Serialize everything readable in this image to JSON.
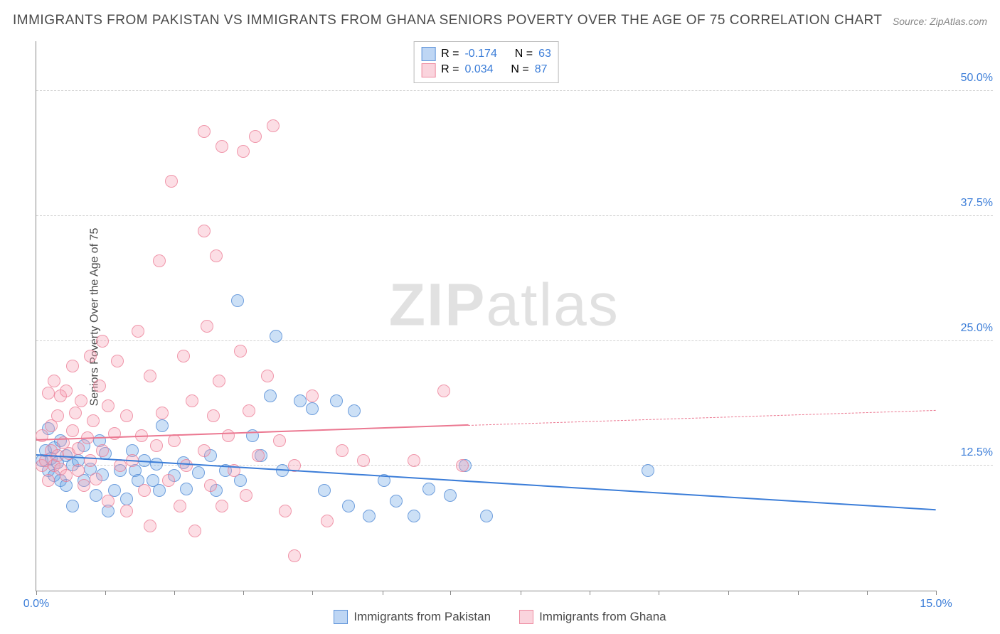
{
  "title": "IMMIGRANTS FROM PAKISTAN VS IMMIGRANTS FROM GHANA SENIORS POVERTY OVER THE AGE OF 75 CORRELATION CHART",
  "source": "Source: ZipAtlas.com",
  "y_axis_label": "Seniors Poverty Over the Age of 75",
  "watermark_bold": "ZIP",
  "watermark_light": "atlas",
  "chart": {
    "type": "scatter",
    "xlim": [
      0,
      15
    ],
    "ylim": [
      0,
      55
    ],
    "y_ticks": [
      12.5,
      25.0,
      37.5,
      50.0
    ],
    "y_tick_labels": [
      "12.5%",
      "25.0%",
      "37.5%",
      "50.0%"
    ],
    "x_ticks": [
      0,
      1.15,
      2.3,
      3.45,
      4.6,
      5.77,
      6.9,
      8.08,
      9.23,
      10.38,
      11.54,
      12.7,
      13.85,
      15
    ],
    "x_left_label": "0.0%",
    "x_right_label": "15.0%",
    "background_color": "#ffffff",
    "grid_color": "#d0d0d0",
    "axis_color": "#888888",
    "marker_radius": 9,
    "series": [
      {
        "name": "Immigrants from Pakistan",
        "color_fill": "rgba(110,165,230,0.35)",
        "color_stroke": "rgba(70,130,210,0.7)",
        "trend_color": "#3b7dd8",
        "R_label": "R = ",
        "R": "-0.174",
        "N_label": "N = ",
        "N": "63",
        "trend": {
          "x1": 0,
          "y1": 13.5,
          "x2": 15,
          "y2": 8.0,
          "dash_from": 15
        },
        "points": [
          [
            0.1,
            13.0
          ],
          [
            0.15,
            14.0
          ],
          [
            0.2,
            12.0
          ],
          [
            0.2,
            16.2
          ],
          [
            0.25,
            13.2
          ],
          [
            0.3,
            11.5
          ],
          [
            0.3,
            14.3
          ],
          [
            0.35,
            12.8
          ],
          [
            0.4,
            11.0
          ],
          [
            0.4,
            15.0
          ],
          [
            0.5,
            10.5
          ],
          [
            0.5,
            13.5
          ],
          [
            0.6,
            12.6
          ],
          [
            0.6,
            8.5
          ],
          [
            0.7,
            13.0
          ],
          [
            0.8,
            11.0
          ],
          [
            0.8,
            14.5
          ],
          [
            0.9,
            12.2
          ],
          [
            1.0,
            9.5
          ],
          [
            1.05,
            15.0
          ],
          [
            1.1,
            11.6
          ],
          [
            1.15,
            13.7
          ],
          [
            1.2,
            8.0
          ],
          [
            1.3,
            10.0
          ],
          [
            1.4,
            12.0
          ],
          [
            1.5,
            9.2
          ],
          [
            1.6,
            14.0
          ],
          [
            1.65,
            12.0
          ],
          [
            1.7,
            11.0
          ],
          [
            1.8,
            13.0
          ],
          [
            1.95,
            11.0
          ],
          [
            2.0,
            12.7
          ],
          [
            2.05,
            10.0
          ],
          [
            2.1,
            16.5
          ],
          [
            2.3,
            11.5
          ],
          [
            2.45,
            12.8
          ],
          [
            2.5,
            10.2
          ],
          [
            2.7,
            11.8
          ],
          [
            2.9,
            13.5
          ],
          [
            3.0,
            10.0
          ],
          [
            3.15,
            12.0
          ],
          [
            3.35,
            29.0
          ],
          [
            3.4,
            11.0
          ],
          [
            3.6,
            15.5
          ],
          [
            3.75,
            13.5
          ],
          [
            3.9,
            19.5
          ],
          [
            4.0,
            25.5
          ],
          [
            4.1,
            12.0
          ],
          [
            4.4,
            19.0
          ],
          [
            4.6,
            18.2
          ],
          [
            4.8,
            10.0
          ],
          [
            5.0,
            19.0
          ],
          [
            5.2,
            8.5
          ],
          [
            5.3,
            18.0
          ],
          [
            5.55,
            7.5
          ],
          [
            5.8,
            11.0
          ],
          [
            6.0,
            9.0
          ],
          [
            6.3,
            7.5
          ],
          [
            6.55,
            10.2
          ],
          [
            6.9,
            9.5
          ],
          [
            7.15,
            12.5
          ],
          [
            7.5,
            7.5
          ],
          [
            10.2,
            12.0
          ]
        ]
      },
      {
        "name": "Immigrants from Ghana",
        "color_fill": "rgba(245,160,180,0.35)",
        "color_stroke": "rgba(235,120,145,0.7)",
        "trend_color": "#eb7891",
        "R_label": "R = ",
        "R": "0.034",
        "N_label": "N = ",
        "N": "87",
        "trend": {
          "x1": 0,
          "y1": 15.0,
          "x2": 7.2,
          "y2": 16.5,
          "dash_from": 7.2,
          "x3": 15,
          "y3": 18.0
        },
        "points": [
          [
            0.1,
            12.5
          ],
          [
            0.1,
            15.5
          ],
          [
            0.15,
            13.0
          ],
          [
            0.2,
            19.8
          ],
          [
            0.2,
            11.0
          ],
          [
            0.25,
            16.5
          ],
          [
            0.25,
            14.0
          ],
          [
            0.3,
            12.5
          ],
          [
            0.3,
            21.0
          ],
          [
            0.35,
            13.5
          ],
          [
            0.35,
            17.5
          ],
          [
            0.4,
            19.5
          ],
          [
            0.4,
            12.2
          ],
          [
            0.45,
            14.8
          ],
          [
            0.5,
            11.5
          ],
          [
            0.5,
            20.0
          ],
          [
            0.55,
            13.7
          ],
          [
            0.6,
            16.0
          ],
          [
            0.6,
            22.5
          ],
          [
            0.65,
            17.8
          ],
          [
            0.7,
            14.2
          ],
          [
            0.7,
            12.0
          ],
          [
            0.75,
            19.0
          ],
          [
            0.8,
            10.5
          ],
          [
            0.85,
            15.3
          ],
          [
            0.9,
            23.5
          ],
          [
            0.9,
            13.0
          ],
          [
            0.95,
            17.0
          ],
          [
            1.0,
            11.2
          ],
          [
            1.05,
            20.5
          ],
          [
            1.1,
            25.0
          ],
          [
            1.1,
            14.0
          ],
          [
            1.2,
            18.5
          ],
          [
            1.2,
            9.0
          ],
          [
            1.3,
            15.7
          ],
          [
            1.35,
            23.0
          ],
          [
            1.4,
            12.5
          ],
          [
            1.5,
            17.5
          ],
          [
            1.5,
            8.0
          ],
          [
            1.6,
            13.0
          ],
          [
            1.7,
            26.0
          ],
          [
            1.75,
            15.5
          ],
          [
            1.8,
            10.0
          ],
          [
            1.9,
            21.5
          ],
          [
            1.9,
            6.5
          ],
          [
            2.0,
            14.5
          ],
          [
            2.05,
            33.0
          ],
          [
            2.1,
            17.8
          ],
          [
            2.2,
            11.0
          ],
          [
            2.25,
            41.0
          ],
          [
            2.3,
            15.0
          ],
          [
            2.4,
            8.5
          ],
          [
            2.45,
            23.5
          ],
          [
            2.5,
            12.5
          ],
          [
            2.6,
            19.0
          ],
          [
            2.65,
            6.0
          ],
          [
            2.8,
            46.0
          ],
          [
            2.8,
            36.0
          ],
          [
            2.8,
            14.0
          ],
          [
            2.85,
            26.5
          ],
          [
            2.9,
            10.5
          ],
          [
            2.95,
            17.5
          ],
          [
            3.0,
            33.5
          ],
          [
            3.05,
            21.0
          ],
          [
            3.1,
            44.5
          ],
          [
            3.1,
            8.5
          ],
          [
            3.2,
            15.5
          ],
          [
            3.3,
            12.0
          ],
          [
            3.4,
            24.0
          ],
          [
            3.45,
            44.0
          ],
          [
            3.5,
            9.5
          ],
          [
            3.55,
            18.0
          ],
          [
            3.65,
            45.5
          ],
          [
            3.7,
            13.5
          ],
          [
            3.85,
            21.5
          ],
          [
            3.95,
            46.5
          ],
          [
            4.05,
            15.0
          ],
          [
            4.15,
            8.0
          ],
          [
            4.3,
            12.5
          ],
          [
            4.3,
            3.5
          ],
          [
            4.6,
            19.5
          ],
          [
            4.85,
            7.0
          ],
          [
            5.1,
            14.0
          ],
          [
            5.45,
            13.0
          ],
          [
            6.3,
            13.0
          ],
          [
            6.8,
            20.0
          ],
          [
            7.1,
            12.5
          ]
        ]
      }
    ]
  },
  "legend_bottom": {
    "items": [
      "Immigrants from Pakistan",
      "Immigrants from Ghana"
    ]
  }
}
